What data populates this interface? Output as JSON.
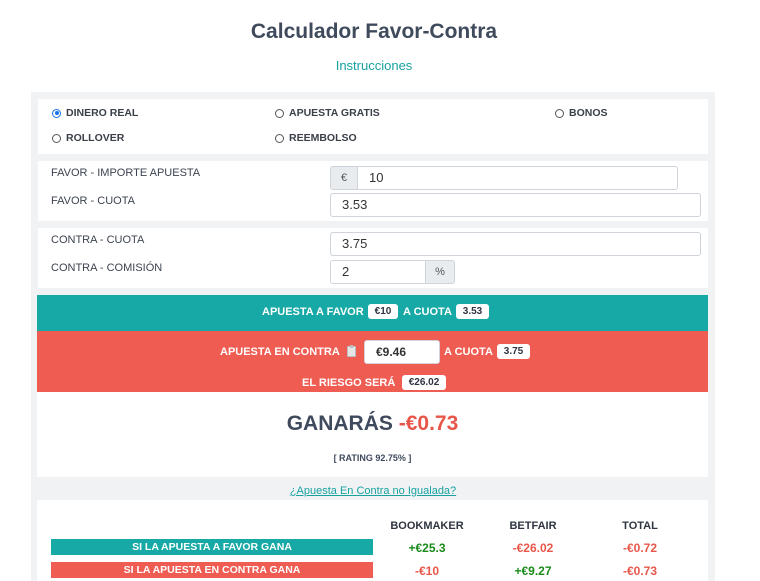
{
  "page": {
    "title": "Calculador Favor-Contra",
    "instructions_link": "Instrucciones"
  },
  "modes": {
    "selected": "DINERO REAL",
    "options": [
      "DINERO REAL",
      "APUESTA GRATIS",
      "BONOS",
      "ROLLOVER",
      "REEMBOLSO"
    ]
  },
  "favor": {
    "stake_label": "FAVOR - IMPORTE APUESTA",
    "currency_symbol": "€",
    "stake_value": "10",
    "odds_label": "FAVOR - CUOTA",
    "odds_value": "3.53"
  },
  "contra": {
    "odds_label": "CONTRA - CUOTA",
    "odds_value": "3.75",
    "commission_label": "CONTRA - COMISIÓN",
    "commission_value": "2",
    "percent_symbol": "%"
  },
  "summary": {
    "favor_text": "APUESTA A FAVOR",
    "favor_amount": "€10",
    "a_cuota_1": "A CUOTA",
    "favor_odds": "3.53",
    "contra_text": "APUESTA EN CONTRA",
    "contra_amount": "€9.46",
    "a_cuota_2": "A CUOTA",
    "contra_odds": "3.75",
    "risk_text": "EL RIESGO SERÁ",
    "risk_amount": "€26.02"
  },
  "result": {
    "ganaras": "GANARÁS",
    "profit": "-€0.73",
    "rating": "[ RATING 92.75% ]"
  },
  "unmatched_link": "¿Apuesta En Contra no Igualada?",
  "table": {
    "headers": [
      "BOOKMAKER",
      "BETFAIR",
      "TOTAL"
    ],
    "rows": [
      {
        "label": "SI LA APUESTA A FAVOR GANA",
        "bookmaker": "+€25.3",
        "betfair": "-€26.02",
        "total": "-€0.72"
      },
      {
        "label": "SI LA APUESTA EN CONTRA GANA",
        "bookmaker": "-€10",
        "betfair": "+€9.27",
        "total": "-€0.73"
      }
    ]
  },
  "colors": {
    "teal": "#17a9a6",
    "red": "#ef5c52",
    "positive": "#1a8a1a",
    "negative": "#e8564a"
  }
}
